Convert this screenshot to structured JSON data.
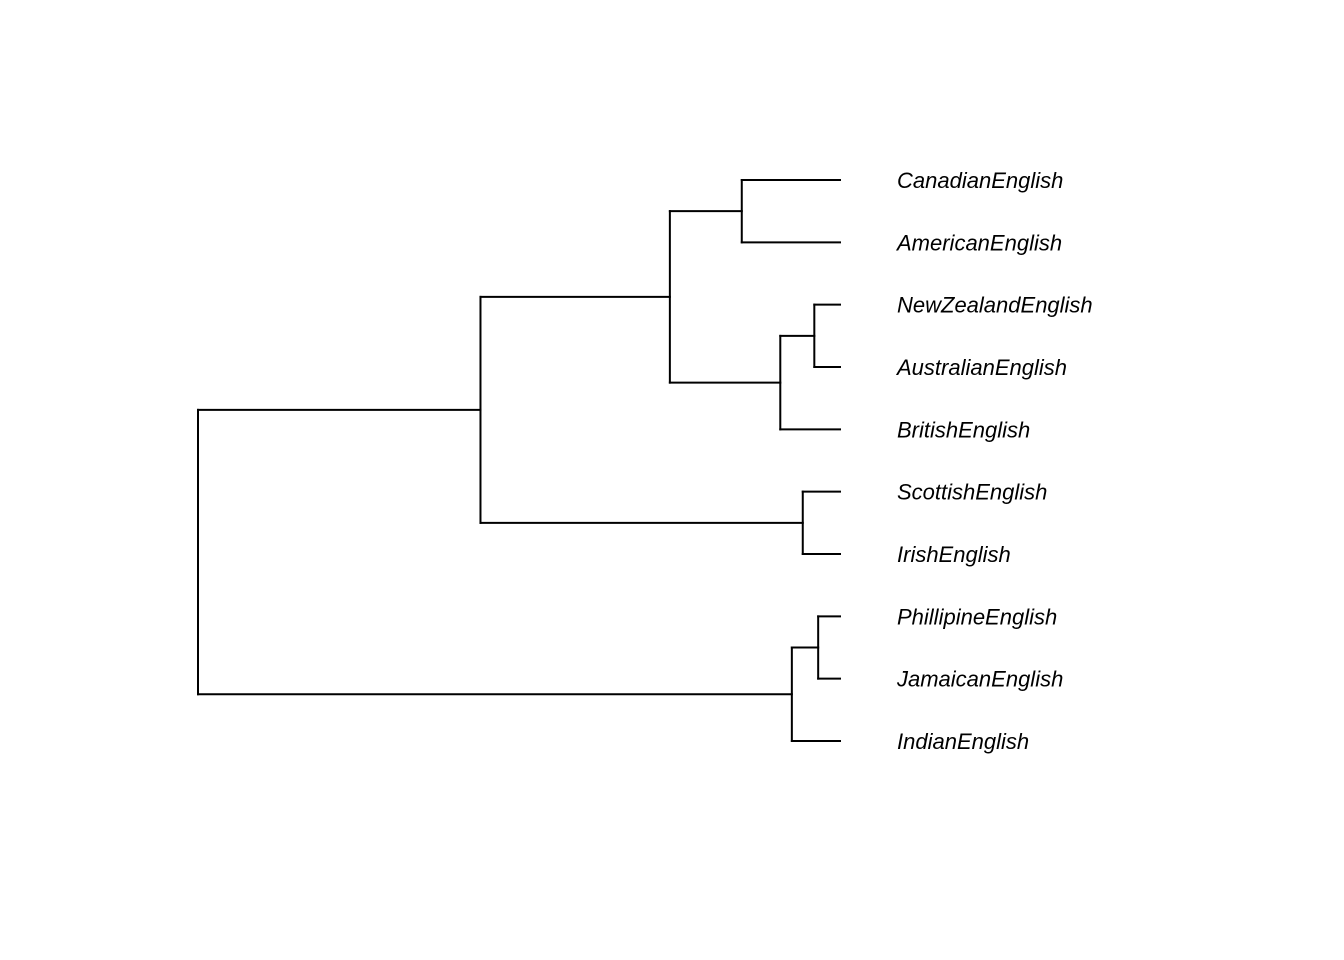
{
  "diagram": {
    "type": "dendrogram",
    "orientation": "left-to-right, leaves on right",
    "line_color": "#000000",
    "leaves": [
      "CanadianEnglish",
      "AmericanEnglish",
      "NewZealandEnglish",
      "AustralianEnglish",
      "BritishEnglish",
      "ScottishEnglish",
      "IrishEnglish",
      "PhillipineEnglish",
      "JamaicanEnglish",
      "IndianEnglish"
    ],
    "tree": {
      "height": 1.0,
      "children": [
        {
          "height": 0.56,
          "children": [
            {
              "height": 0.265,
              "children": [
                {
                  "height": 0.153,
                  "children": [
                    "CanadianEnglish",
                    "AmericanEnglish"
                  ]
                },
                {
                  "height": 0.093,
                  "children": [
                    {
                      "height": 0.04,
                      "children": [
                        "NewZealandEnglish",
                        "AustralianEnglish"
                      ]
                    },
                    "BritishEnglish"
                  ]
                }
              ]
            },
            {
              "height": 0.058,
              "children": [
                "ScottishEnglish",
                "IrishEnglish"
              ]
            }
          ]
        },
        {
          "height": 0.075,
          "children": [
            {
              "height": 0.034,
              "children": [
                "PhillipineEnglish",
                "JamaicanEnglish"
              ]
            },
            "IndianEnglish"
          ]
        }
      ]
    }
  }
}
